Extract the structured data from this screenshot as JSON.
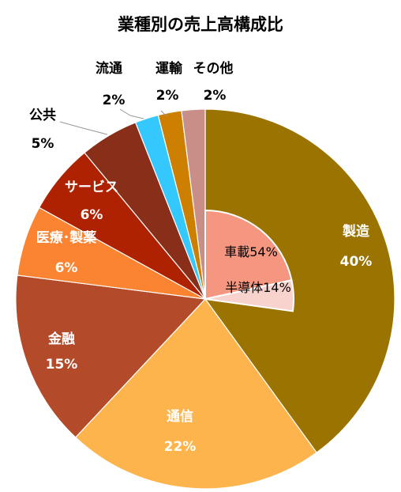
{
  "chart_data": {
    "type": "pie",
    "title": "業種別の売上高構成比",
    "slices": [
      {
        "label": "製造",
        "value": 40,
        "pct": "40%",
        "color": "#9A7300",
        "text_color": "#ffffff"
      },
      {
        "label": "通信",
        "value": 22,
        "pct": "22%",
        "color": "#FEB44C",
        "text_color": "#ffffff"
      },
      {
        "label": "金融",
        "value": 15,
        "pct": "15%",
        "color": "#B34A2A",
        "text_color": "#ffffff"
      },
      {
        "label": "医療･製薬",
        "value": 6,
        "pct": "6%",
        "color": "#FA8431",
        "text_color": "#ffffff"
      },
      {
        "label": "サービス",
        "value": 6,
        "pct": "6%",
        "color": "#AF2201",
        "text_color": "#ffffff"
      },
      {
        "label": "公共",
        "value": 5,
        "pct": "5%",
        "color": "#892E18",
        "text_color": "#000000"
      },
      {
        "label": "流通",
        "value": 2,
        "pct": "2%",
        "color": "#34C8FE",
        "text_color": "#000000"
      },
      {
        "label": "運輸",
        "value": 2,
        "pct": "2%",
        "color": "#CC7F00",
        "text_color": "#000000"
      },
      {
        "label": "その他",
        "value": 2,
        "pct": "2%",
        "color": "#C98E87",
        "text_color": "#000000"
      }
    ],
    "sub_breakdown": {
      "parent": "製造",
      "slices": [
        {
          "label": "車載54%",
          "value": 54,
          "color": "#F59680"
        },
        {
          "label": "半導体14%",
          "value": 14,
          "color": "#F8D2CD"
        }
      ]
    }
  }
}
